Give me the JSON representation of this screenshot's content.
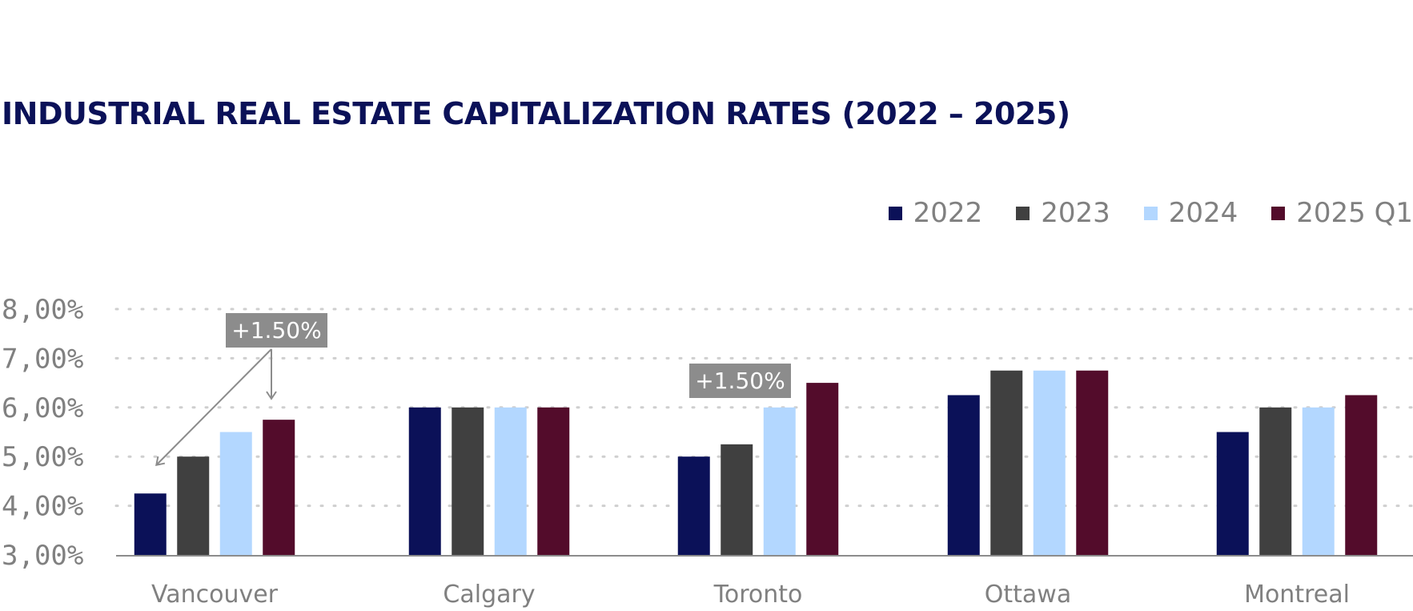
{
  "chart_data": {
    "type": "bar",
    "title": "INDUSTRIAL REAL ESTATE CAPITALIZATION RATES (2022 – 2025)",
    "categories": [
      "Vancouver",
      "Calgary",
      "Toronto",
      "Ottawa",
      "Montreal"
    ],
    "series": [
      {
        "name": "2022",
        "color": "#0b1158",
        "values": [
          4.25,
          6.0,
          5.0,
          6.25,
          5.5
        ]
      },
      {
        "name": "2023",
        "color": "#404040",
        "values": [
          5.0,
          6.0,
          5.25,
          6.75,
          6.0
        ]
      },
      {
        "name": "2024",
        "color": "#b3d7ff",
        "values": [
          5.5,
          6.0,
          6.0,
          6.75,
          6.0
        ]
      },
      {
        "name": "2025 Q1",
        "color": "#530c2b",
        "values": [
          5.75,
          6.0,
          6.5,
          6.75,
          6.25
        ]
      }
    ],
    "ylim": [
      3,
      8
    ],
    "yticks": [
      "3,00%",
      "4,00%",
      "5,00%",
      "6,00%",
      "7,00%",
      "8,00%"
    ],
    "xlabel": "",
    "ylabel": "",
    "grid": true,
    "legend_position": "top-right",
    "annotations": [
      {
        "text": "+1.50%",
        "category": "Vancouver",
        "arrow_from_series": "2022",
        "arrow_to_series": "2025 Q1"
      },
      {
        "text": "+1.50%",
        "category": "Toronto"
      }
    ]
  }
}
